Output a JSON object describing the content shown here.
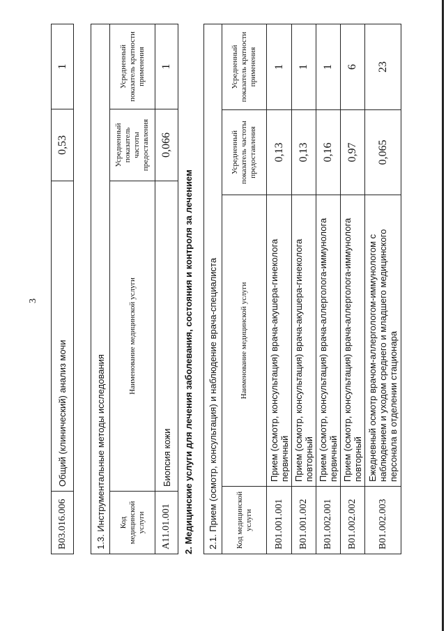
{
  "page_number": "3",
  "table_top": {
    "row": {
      "code": "B03.016.006",
      "name": "Общий (клинический) анализ мочи",
      "frequency": "0,53",
      "multiplicity": "1"
    }
  },
  "section_1_3": {
    "title": "1.3.  Инструментальные методы исследования",
    "headers": {
      "code": "Код медицинской услуги",
      "name": "Наименование медицинской услуги",
      "frequency": "Усредненный показатель частоты предоставления",
      "multiplicity": "Усредненный показатель кратности применения"
    },
    "rows": [
      {
        "code": "A11.01.001",
        "name": "Биопсия кожи",
        "frequency": "0,066",
        "multiplicity": "1"
      }
    ]
  },
  "section_2": {
    "title": "2.  Медицинские услуги для лечения заболевания, состояния и контроля за лечением"
  },
  "section_2_1": {
    "title": "2.1.  Прием (осмотр, консультация) и наблюдение врача-специалиста",
    "headers": {
      "code": "Код медицинской услуги",
      "name": "Наименование медицинской услуги",
      "frequency": "Усредненный показатель частоты предоставления",
      "multiplicity": "Усредненный показатель кратности применения"
    },
    "rows": [
      {
        "code": "B01.001.001",
        "name": "Прием (осмотр, консультация) врача-акушера-гинеколога первичный",
        "frequency": "0,13",
        "multiplicity": "1"
      },
      {
        "code": "B01.001.002",
        "name": "Прием (осмотр, консультация) врача-акушера-гинеколога повторный",
        "frequency": "0,13",
        "multiplicity": "1"
      },
      {
        "code": "B01.002.001",
        "name": "Прием (осмотр, консультация) врача-аллерголога-иммунолога первичный",
        "frequency": "0,16",
        "multiplicity": "1"
      },
      {
        "code": "B01.002.002",
        "name": "Прием (осмотр, консультация) врача-аллерголога-иммунолога повторный",
        "frequency": "0,97",
        "multiplicity": "6"
      },
      {
        "code": "B01.002.003",
        "name": "Ежедневный осмотр врачом-аллергологом-иммунологом с наблюдением и уходом среднего и младшего медицинского персонала в отделении стационара",
        "frequency": "0,065",
        "multiplicity": "23"
      }
    ]
  }
}
